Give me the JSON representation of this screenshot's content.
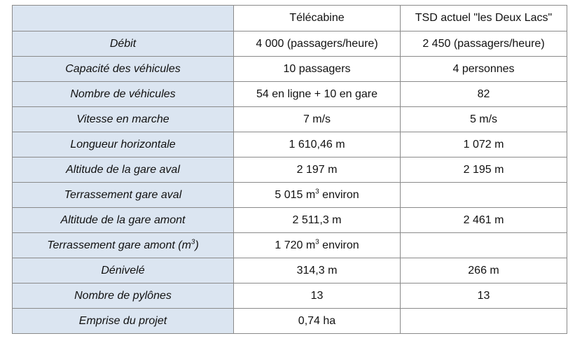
{
  "table": {
    "headers": [
      "",
      "Télécabine",
      "TSD actuel \"les Deux Lacs\""
    ],
    "rows": [
      {
        "label": "Débit",
        "telecabine": "4 000 (passagers/heure)",
        "tsd": "2 450 (passagers/heure)"
      },
      {
        "label": "Capacité des véhicules",
        "telecabine": "10 passagers",
        "tsd": "4 personnes"
      },
      {
        "label": "Nombre de véhicules",
        "telecabine": "54 en ligne + 10 en gare",
        "tsd": "82"
      },
      {
        "label": "Vitesse en marche",
        "telecabine": "7 m/s",
        "tsd": "5 m/s"
      },
      {
        "label": "Longueur horizontale",
        "telecabine": "1 610,46 m",
        "tsd": "1 072 m"
      },
      {
        "label": "Altitude de la gare aval",
        "telecabine": "2 197 m",
        "tsd": "2 195 m"
      },
      {
        "label": "Terrassement gare aval",
        "telecabine": "5 015 m³ environ",
        "tsd": ""
      },
      {
        "label": "Altitude de la gare amont",
        "telecabine": "2 511,3 m",
        "tsd": "2 461 m"
      },
      {
        "label": "Terrassement gare amont (m³)",
        "telecabine": "1 720 m³ environ",
        "tsd": ""
      },
      {
        "label": "Dénivelé",
        "telecabine": "314,3 m",
        "tsd": "266 m"
      },
      {
        "label": "Nombre de pylônes",
        "telecabine": "13",
        "tsd": "13"
      },
      {
        "label": "Emprise du projet",
        "telecabine": "0,74 ha",
        "tsd": ""
      }
    ]
  },
  "colors": {
    "label_background": "#dbe5f1",
    "border": "#8a8a8a"
  }
}
